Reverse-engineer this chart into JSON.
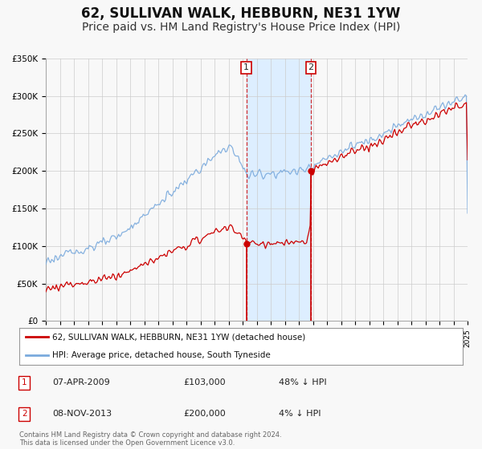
{
  "title": "62, SULLIVAN WALK, HEBBURN, NE31 1YW",
  "subtitle": "Price paid vs. HM Land Registry's House Price Index (HPI)",
  "legend_label_red": "62, SULLIVAN WALK, HEBBURN, NE31 1YW (detached house)",
  "legend_label_blue": "HPI: Average price, detached house, South Tyneside",
  "transaction1_label": "1",
  "transaction1_date": "07-APR-2009",
  "transaction1_price": "£103,000",
  "transaction1_hpi": "48% ↓ HPI",
  "transaction1_year": 2009.27,
  "transaction1_price_val": 103000,
  "transaction2_label": "2",
  "transaction2_date": "08-NOV-2013",
  "transaction2_price": "£200,000",
  "transaction2_hpi": "4% ↓ HPI",
  "transaction2_year": 2013.85,
  "transaction2_price_val": 200000,
  "footnote": "Contains HM Land Registry data © Crown copyright and database right 2024.\nThis data is licensed under the Open Government Licence v3.0.",
  "color_red": "#cc0000",
  "color_blue": "#7aaadd",
  "color_shading": "#ddeeff",
  "ylim": [
    0,
    350000
  ],
  "xlim_start": 1995,
  "xlim_end": 2025,
  "background_color": "#f8f8f8",
  "grid_color": "#cccccc",
  "title_fontsize": 12,
  "subtitle_fontsize": 10
}
